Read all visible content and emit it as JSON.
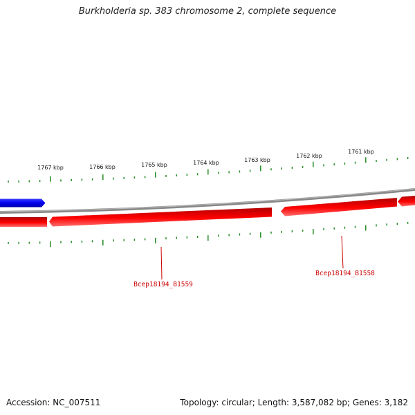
{
  "title": "Burkholderia sp. 383 chromosome 2, complete sequence",
  "footer": {
    "accession": "Accession: NC_007511",
    "summary": "Topology: circular; Length: 3,587,082 bp; Genes: 3,182"
  },
  "colors": {
    "forward_gene": "#0000ee",
    "reverse_gene": "#ee0000",
    "backbone": "#888888",
    "ticks": "#228b22",
    "gene_label": "#cc0000"
  },
  "scale_ticks": [
    {
      "label": "1767 kbp"
    },
    {
      "label": "1766 kbp"
    },
    {
      "label": "1765 kbp"
    },
    {
      "label": "1764 kbp"
    },
    {
      "label": "1763 kbp"
    },
    {
      "label": "1762 kbp"
    },
    {
      "label": "1761 kbp"
    }
  ],
  "gene_labels": [
    {
      "name": "Bcep18194_B1559"
    },
    {
      "name": "Bcep18194_B1558"
    }
  ]
}
